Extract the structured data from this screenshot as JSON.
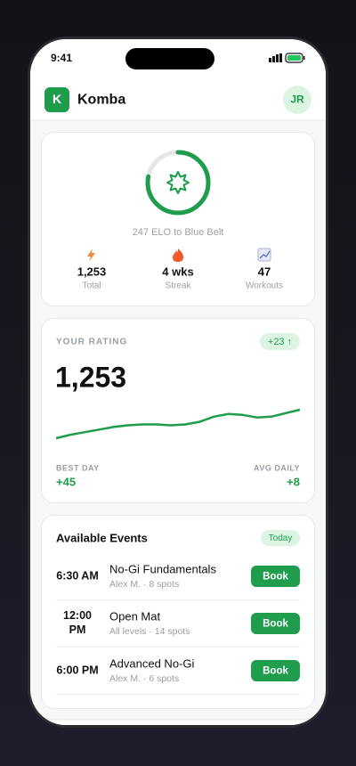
{
  "status_bar": {
    "time": "9:41"
  },
  "header": {
    "logo": "K",
    "title": "Komba",
    "avatar": "JR"
  },
  "progress_card": {
    "progress": 78,
    "caption": "247 ELO to Blue Belt",
    "stats": [
      {
        "value": "1,253",
        "label": "Total"
      },
      {
        "value": "4 wks",
        "label": "Streak"
      },
      {
        "value": "47",
        "label": "Workouts"
      }
    ]
  },
  "rating_card": {
    "label": "YOUR RATING",
    "change": "+23 ↑",
    "value": "1,253",
    "trend": [
      8,
      12,
      15,
      18,
      21,
      23,
      24,
      24,
      23,
      24,
      27,
      33,
      36,
      35,
      32,
      33,
      37,
      41
    ],
    "best_day_label": "BEST DAY",
    "best_day": "+45",
    "avg_daily_label": "AVG DAILY",
    "avg_daily": "+8"
  },
  "events": {
    "title": "Available Events",
    "badge": "Today",
    "items": [
      {
        "time": "6:30 AM",
        "name": "No-Gi Fundamentals",
        "detail": "Alex M. · 8 spots",
        "action": "Book"
      },
      {
        "time": "12:00 PM",
        "name": "Open Mat",
        "detail": "All levels · 14 spots",
        "action": "Book"
      },
      {
        "time": "6:00 PM",
        "name": "Advanced No-Gi",
        "detail": "Alex M. · 6 spots",
        "action": "Book"
      }
    ]
  }
}
